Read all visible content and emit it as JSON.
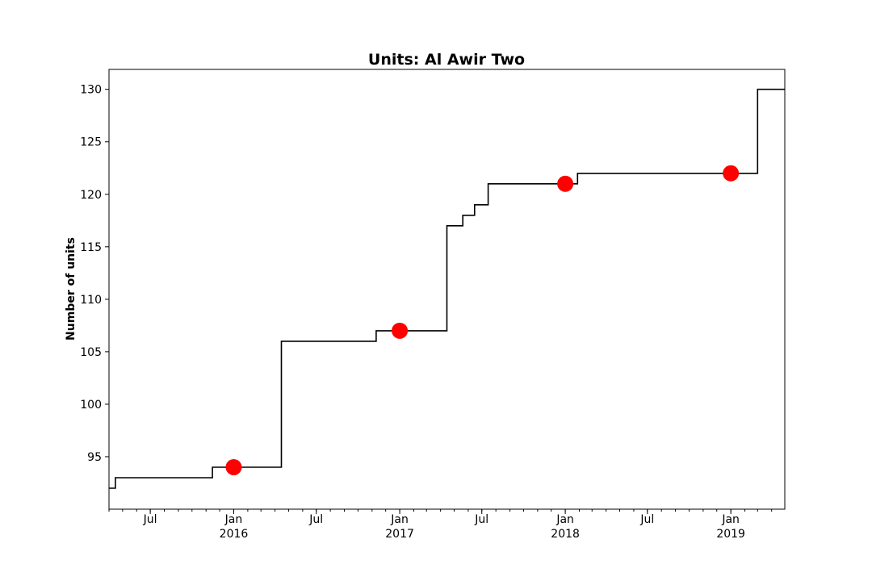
{
  "chart_data": {
    "type": "line",
    "title": "Units: Al Awir Two",
    "xlabel": "",
    "ylabel": "Number of units",
    "ylim": [
      90.0,
      131.9
    ],
    "xlim": [
      "2015-04-01",
      "2019-04-30"
    ],
    "y_ticks": [
      95,
      100,
      105,
      110,
      115,
      120,
      125,
      130
    ],
    "x_major_ticks": [
      {
        "date": "2015-07-01",
        "label": "Jul",
        "year": ""
      },
      {
        "date": "2016-01-01",
        "label": "Jan",
        "year": "2016"
      },
      {
        "date": "2016-07-01",
        "label": "Jul",
        "year": ""
      },
      {
        "date": "2017-01-01",
        "label": "Jan",
        "year": "2017"
      },
      {
        "date": "2017-07-01",
        "label": "Jul",
        "year": ""
      },
      {
        "date": "2018-01-01",
        "label": "Jan",
        "year": "2018"
      },
      {
        "date": "2018-07-01",
        "label": "Jul",
        "year": ""
      },
      {
        "date": "2019-01-01",
        "label": "Jan",
        "year": "2019"
      }
    ],
    "grid": false,
    "series": [
      {
        "color": "#000000",
        "step": true,
        "points": [
          {
            "x": "2015-04-01",
            "y": 92
          },
          {
            "x": "2015-04-15",
            "y": 93
          },
          {
            "x": "2015-11-15",
            "y": 94
          },
          {
            "x": "2016-04-15",
            "y": 106
          },
          {
            "x": "2016-11-10",
            "y": 107
          },
          {
            "x": "2017-04-15",
            "y": 117
          },
          {
            "x": "2017-05-20",
            "y": 118
          },
          {
            "x": "2017-06-15",
            "y": 119
          },
          {
            "x": "2017-07-15",
            "y": 121
          },
          {
            "x": "2018-01-28",
            "y": 122
          },
          {
            "x": "2019-03-01",
            "y": 130
          },
          {
            "x": "2019-04-30",
            "y": 130
          }
        ]
      },
      {
        "color": "#ff0000",
        "marker": "circle",
        "points": [
          {
            "x": "2016-01-01",
            "y": 94
          },
          {
            "x": "2017-01-01",
            "y": 107
          },
          {
            "x": "2018-01-01",
            "y": 121
          },
          {
            "x": "2019-01-01",
            "y": 122
          }
        ]
      }
    ]
  }
}
